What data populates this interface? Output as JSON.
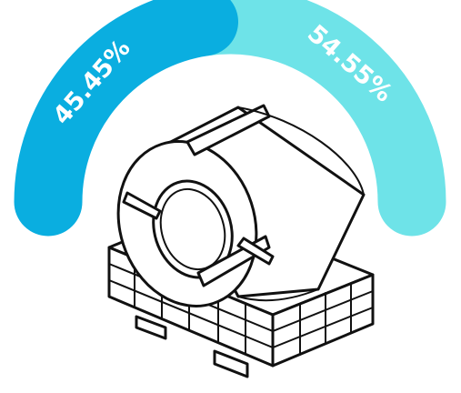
{
  "chart_data": {
    "type": "pie",
    "variant": "semicircle-donut",
    "slices": [
      {
        "label": "45.45%",
        "value": 45.45,
        "color": "#0aaee0"
      },
      {
        "label": "54.55%",
        "value": 54.55,
        "color": "#6ee3e8"
      }
    ],
    "title": "",
    "legend": "none",
    "illustration": "coil-on-pallet"
  }
}
